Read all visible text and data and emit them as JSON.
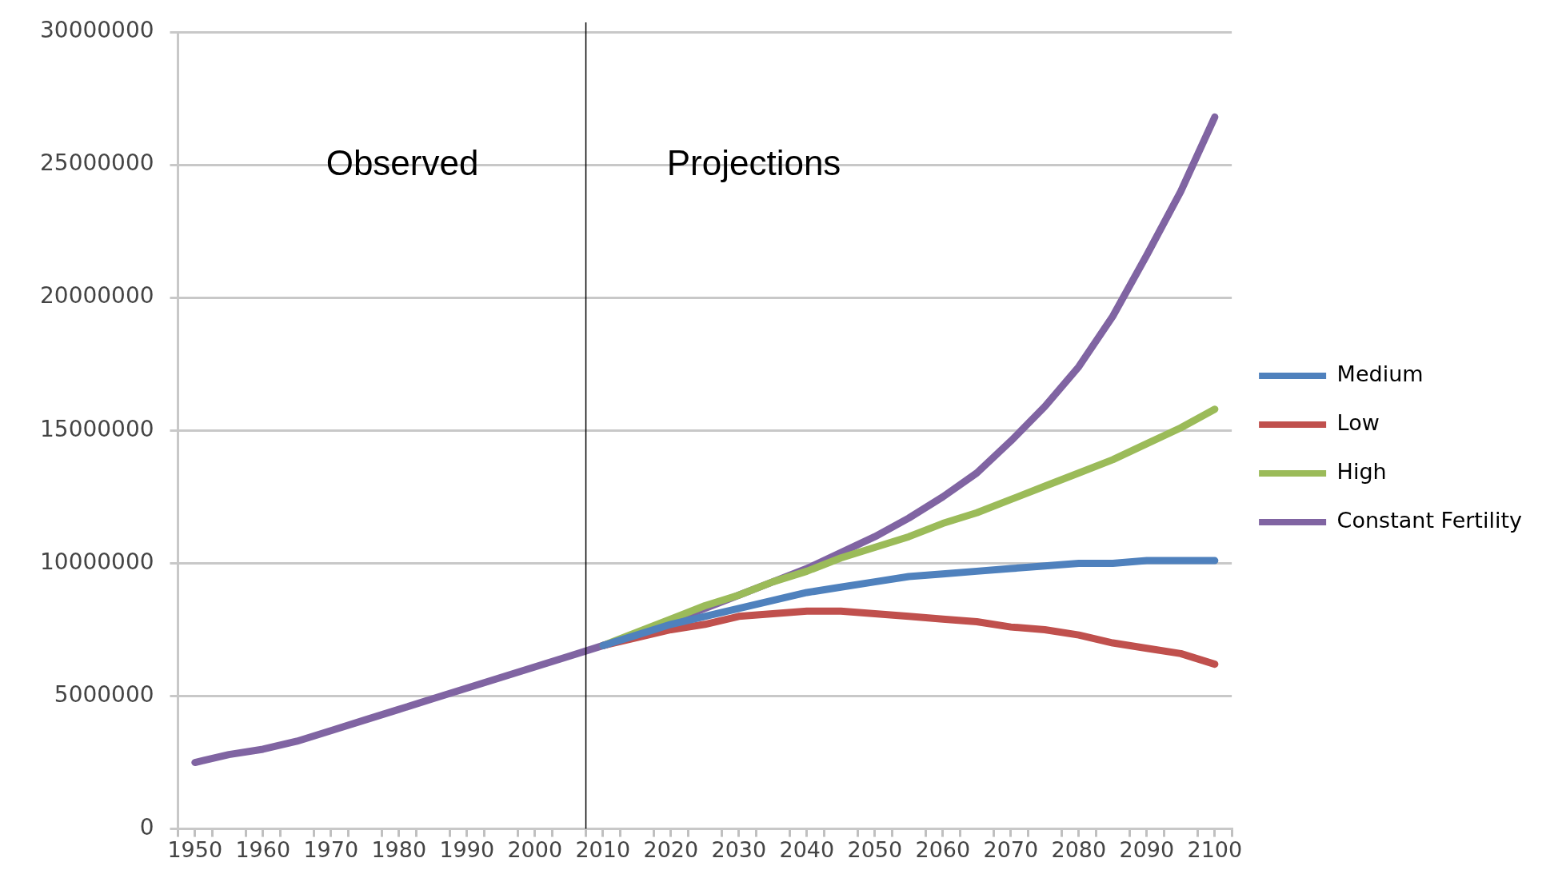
{
  "chart_data": {
    "type": "line",
    "x": [
      1950,
      1955,
      1960,
      1965,
      1970,
      1975,
      1980,
      1985,
      1990,
      1995,
      2000,
      2005,
      2010,
      2015,
      2020,
      2025,
      2030,
      2035,
      2040,
      2045,
      2050,
      2055,
      2060,
      2065,
      2070,
      2075,
      2080,
      2085,
      2090,
      2095,
      2100
    ],
    "series": [
      {
        "name": "Medium",
        "color": "#4f81bd",
        "values": [
          null,
          null,
          null,
          null,
          null,
          null,
          null,
          null,
          null,
          null,
          null,
          null,
          6900000,
          7300000,
          7700000,
          8000000,
          8300000,
          8600000,
          8900000,
          9100000,
          9300000,
          9500000,
          9600000,
          9700000,
          9800000,
          9900000,
          10000000,
          10000000,
          10100000,
          10100000,
          10100000
        ]
      },
      {
        "name": "Low",
        "color": "#c0504d",
        "values": [
          null,
          null,
          null,
          null,
          null,
          null,
          null,
          null,
          null,
          null,
          null,
          null,
          6900000,
          7200000,
          7500000,
          7700000,
          8000000,
          8100000,
          8200000,
          8200000,
          8100000,
          8000000,
          7900000,
          7800000,
          7600000,
          7500000,
          7300000,
          7000000,
          6800000,
          6600000,
          6200000
        ]
      },
      {
        "name": "High",
        "color": "#9bbb59",
        "values": [
          null,
          null,
          null,
          null,
          null,
          null,
          null,
          null,
          null,
          null,
          null,
          null,
          6900000,
          7400000,
          7900000,
          8400000,
          8800000,
          9300000,
          9700000,
          10200000,
          10600000,
          11000000,
          11500000,
          11900000,
          12400000,
          12900000,
          13400000,
          13900000,
          14500000,
          15100000,
          15800000
        ]
      },
      {
        "name": "Constant Fertility",
        "color": "#8064a2",
        "values": [
          2500000,
          2800000,
          3000000,
          3300000,
          3700000,
          4100000,
          4500000,
          4900000,
          5300000,
          5700000,
          6100000,
          6500000,
          6900000,
          7300000,
          7800000,
          8300000,
          8800000,
          9300000,
          9800000,
          10400000,
          11000000,
          11700000,
          12500000,
          13400000,
          14600000,
          15900000,
          17400000,
          19300000,
          21600000,
          24000000,
          26800000
        ]
      }
    ],
    "xlim": [
      1947.5,
      2102.5
    ],
    "xticks": [
      {
        "value": 1947.5,
        "label": null
      },
      1950,
      {
        "value": 1952.5,
        "label": null
      },
      {
        "value": 1957.5,
        "label": null
      },
      1960,
      {
        "value": 1962.5,
        "label": null
      },
      {
        "value": 1967.5,
        "label": null
      },
      1970,
      {
        "value": 1972.5,
        "label": null
      },
      {
        "value": 1977.5,
        "label": null
      },
      1980,
      {
        "value": 1982.5,
        "label": null
      },
      {
        "value": 1987.5,
        "label": null
      },
      1990,
      {
        "value": 1992.5,
        "label": null
      },
      {
        "value": 1997.5,
        "label": null
      },
      2000,
      {
        "value": 2002.5,
        "label": null
      },
      {
        "value": 2007.5,
        "label": null
      },
      2010,
      {
        "value": 2012.5,
        "label": null
      },
      {
        "value": 2017.5,
        "label": null
      },
      2020,
      {
        "value": 2022.5,
        "label": null
      },
      {
        "value": 2027.5,
        "label": null
      },
      2030,
      {
        "value": 2032.5,
        "label": null
      },
      {
        "value": 2037.5,
        "label": null
      },
      2040,
      {
        "value": 2042.5,
        "label": null
      },
      {
        "value": 2047.5,
        "label": null
      },
      2050,
      {
        "value": 2052.5,
        "label": null
      },
      {
        "value": 2057.5,
        "label": null
      },
      2060,
      {
        "value": 2062.5,
        "label": null
      },
      {
        "value": 2067.5,
        "label": null
      },
      2070,
      {
        "value": 2072.5,
        "label": null
      },
      {
        "value": 2077.5,
        "label": null
      },
      2080,
      {
        "value": 2082.5,
        "label": null
      },
      {
        "value": 2087.5,
        "label": null
      },
      2090,
      {
        "value": 2092.5,
        "label": null
      },
      {
        "value": 2097.5,
        "label": null
      },
      2100,
      {
        "value": 2102.5,
        "label": null
      }
    ],
    "ylim": [
      0,
      30000000
    ],
    "yticks": [
      0,
      5000000,
      10000000,
      15000000,
      20000000,
      25000000,
      30000000
    ],
    "grid": "y",
    "legend": "right",
    "marker": "none",
    "line_style": "solid",
    "ref_lines": [
      {
        "axis": "x",
        "value": 2007.5,
        "color": "#000000"
      }
    ],
    "annotations": [
      "Observed",
      "Projections"
    ]
  }
}
